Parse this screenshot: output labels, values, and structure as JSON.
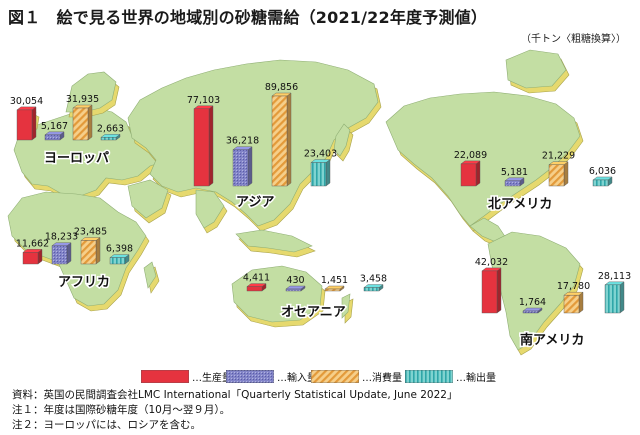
{
  "title": "図１　絵で見る世界の地域別の砂糖需給（2021/22年度予測値）",
  "unit": "（千トン〈粗糖換算〉）",
  "colors": {
    "production": "#e5333f",
    "imports": "#8284c8",
    "consumption": "#f0b45a",
    "exports": "#5ec4c4",
    "land": "#c3dea3",
    "land_side": "#e6d96e"
  },
  "legend": [
    {
      "key": "production",
      "label": "生産量"
    },
    {
      "key": "imports",
      "label": "輸入量"
    },
    {
      "key": "consumption",
      "label": "消費量"
    },
    {
      "key": "exports",
      "label": "輸出量"
    }
  ],
  "chart_data": {
    "type": "bar",
    "series_names": [
      "生産量",
      "輸入量",
      "消費量",
      "輸出量"
    ],
    "regions": [
      {
        "name": "ヨーロッパ",
        "values": [
          30054,
          5167,
          31935,
          2663
        ],
        "labels": [
          "30,054",
          "5,167",
          "31,935",
          "2,663"
        ]
      },
      {
        "name": "アフリカ",
        "values": [
          11662,
          18233,
          23485,
          6398
        ],
        "labels": [
          "11,662",
          "18,233",
          "23,485",
          "6,398"
        ]
      },
      {
        "name": "アジア",
        "values": [
          77103,
          36218,
          89856,
          23403
        ],
        "labels": [
          "77,103",
          "36,218",
          "89,856",
          "23,403"
        ]
      },
      {
        "name": "オセアニア",
        "values": [
          4411,
          430,
          1451,
          3458
        ],
        "labels": [
          "4,411",
          "430",
          "1,451",
          "3,458"
        ]
      },
      {
        "name": "北アメリカ",
        "values": [
          22089,
          5181,
          21229,
          6036
        ],
        "labels": [
          "22,089",
          "5,181",
          "21,229",
          "6,036"
        ]
      },
      {
        "name": "南アメリカ",
        "values": [
          42032,
          1764,
          17780,
          28113
        ],
        "labels": [
          "42,032",
          "1,764",
          "17,780",
          "28,113"
        ]
      }
    ]
  },
  "notes": [
    "資料：英国の民間調査会社LMC International「Quarterly Statistical Update, June 2022」",
    "注１：年度は国際砂糖年度（10月～翌９月）。",
    "注２：ヨーロッパには、ロシアを含む。"
  ]
}
